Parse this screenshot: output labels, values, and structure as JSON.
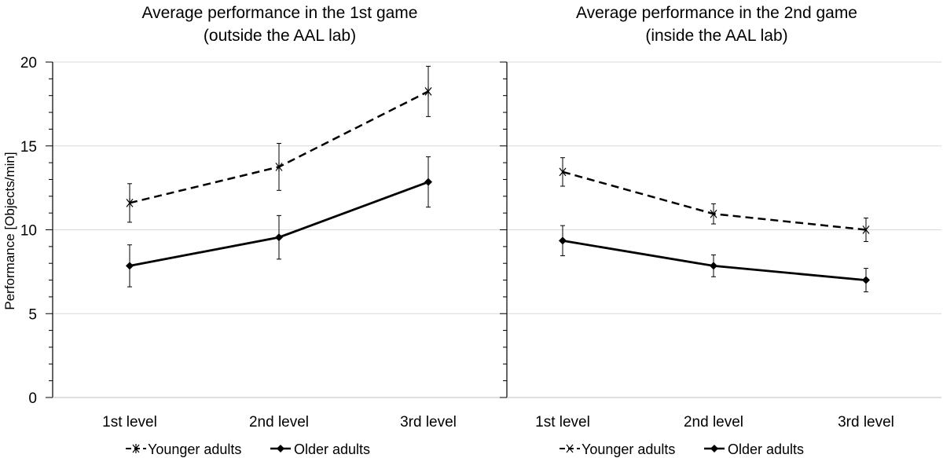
{
  "y_axis_label": "Performance [Objects/min]",
  "legend": {
    "younger_label": "Younger adults",
    "older_label": "Older adults"
  },
  "chart_data": [
    {
      "type": "line",
      "title": "Average performance in the 1st game",
      "subtitle": "(outside the AAL lab)",
      "ylabel": "Performance [Objects/min]",
      "ylim": [
        0,
        20
      ],
      "yticks": [
        0,
        5,
        10,
        15,
        20
      ],
      "grid": true,
      "categories": [
        "1st level",
        "2nd level",
        "3rd level"
      ],
      "series": [
        {
          "name": "Younger adults",
          "values": [
            11.6,
            13.75,
            18.25
          ],
          "error": [
            1.15,
            1.4,
            1.5
          ],
          "line_style": "dashed",
          "marker": "x"
        },
        {
          "name": "Older adults",
          "values": [
            7.85,
            9.55,
            12.85
          ],
          "error": [
            1.25,
            1.3,
            1.5
          ],
          "line_style": "solid",
          "marker": "diamond"
        }
      ]
    },
    {
      "type": "line",
      "title": "Average performance in the 2nd game",
      "subtitle": "(inside the AAL lab)",
      "ylim": [
        0,
        20
      ],
      "yticks": [
        0,
        5,
        10,
        15,
        20
      ],
      "grid": true,
      "categories": [
        "1st level",
        "2nd level",
        "3rd level"
      ],
      "series": [
        {
          "name": "Younger adults",
          "values": [
            13.45,
            10.95,
            10.0
          ],
          "error": [
            0.85,
            0.6,
            0.7
          ],
          "line_style": "dashed",
          "marker": "x"
        },
        {
          "name": "Older adults",
          "values": [
            9.35,
            7.85,
            7.0
          ],
          "error": [
            0.9,
            0.65,
            0.7
          ],
          "line_style": "solid",
          "marker": "diamond"
        }
      ]
    }
  ]
}
